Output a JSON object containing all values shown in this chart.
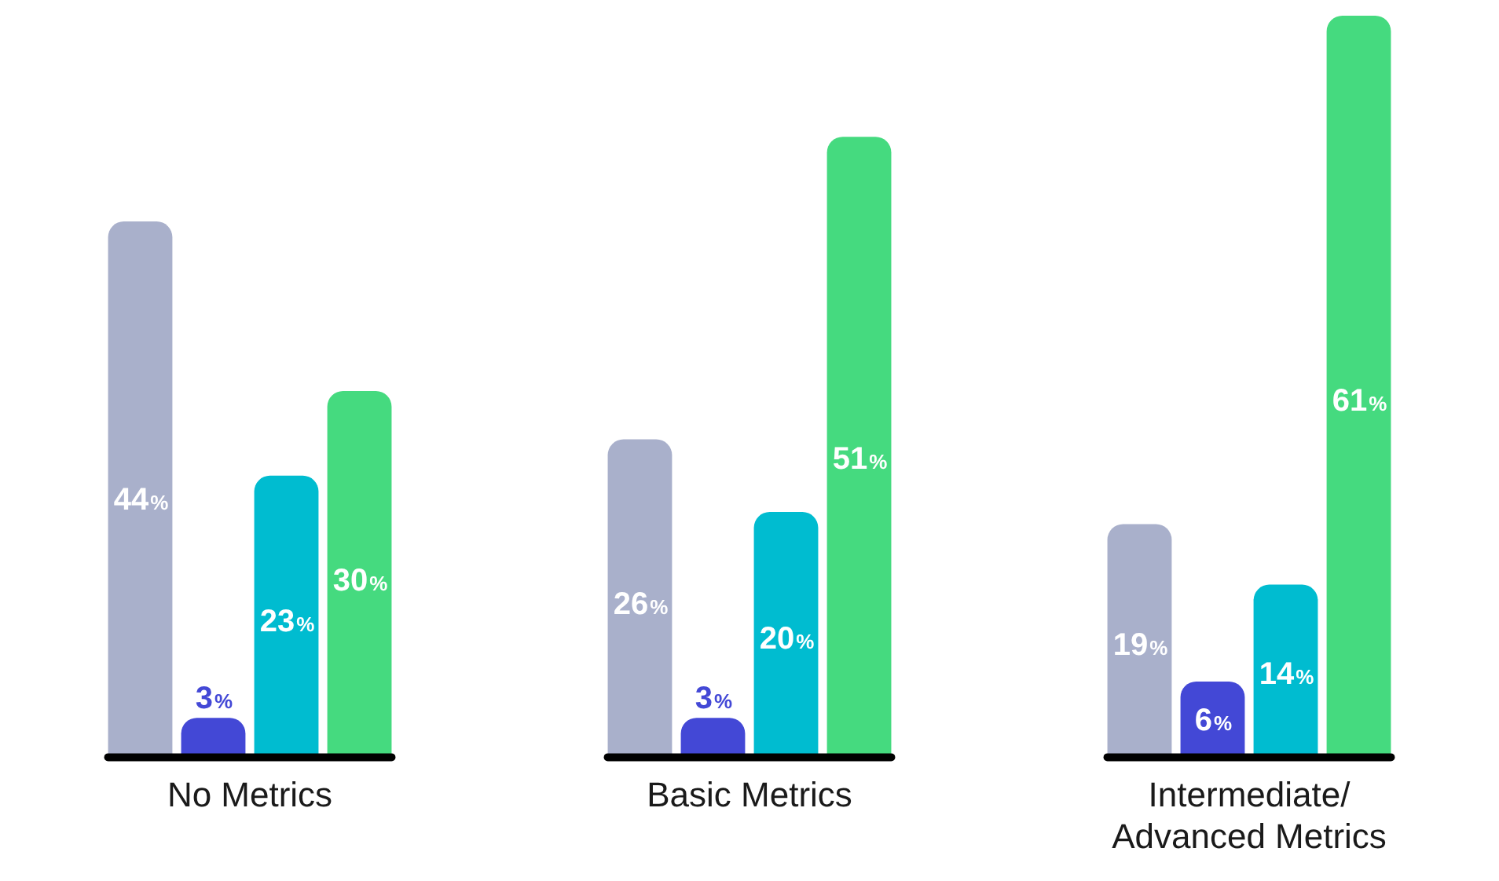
{
  "chart_data": {
    "type": "bar",
    "categories": [
      "No Metrics",
      "Basic Metrics",
      "Intermediate/ Advanced Metrics"
    ],
    "series": [
      {
        "color": "#a9b0cb",
        "values": [
          44,
          26,
          19
        ],
        "value_labels": [
          "44%",
          "26%",
          "19%"
        ]
      },
      {
        "color": "#4348d6",
        "values": [
          3,
          3,
          6
        ],
        "value_labels": [
          "3%",
          "3%",
          "6%"
        ]
      },
      {
        "color": "#00bcd0",
        "values": [
          23,
          20,
          14
        ],
        "value_labels": [
          "23%",
          "20%",
          "14%"
        ]
      },
      {
        "color": "#45da7f",
        "values": [
          30,
          51,
          61
        ],
        "value_labels": [
          "30%",
          "51%",
          "61%"
        ]
      }
    ],
    "tick_labels": "x",
    "grid": false,
    "legend": false
  }
}
